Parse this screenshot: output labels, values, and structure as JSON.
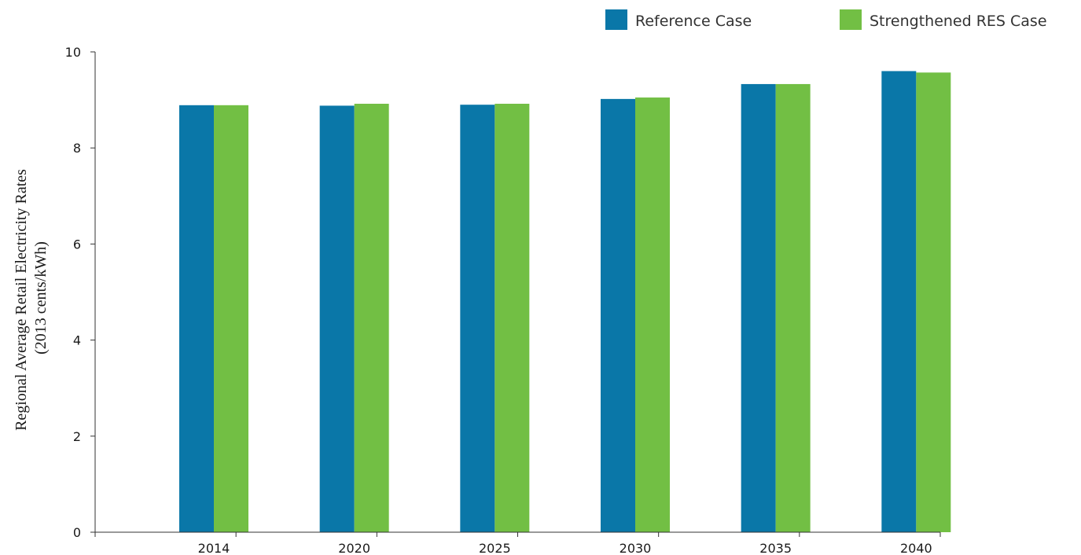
{
  "chart_data": {
    "type": "bar",
    "categories": [
      "2014",
      "2020",
      "2025",
      "2030",
      "2035",
      "2040"
    ],
    "series": [
      {
        "name": "Reference Case",
        "color": "#0a77a8",
        "values": [
          8.89,
          8.88,
          8.9,
          9.02,
          9.33,
          9.6
        ]
      },
      {
        "name": "Strengthened RES Case",
        "color": "#72bf44",
        "values": [
          8.89,
          8.92,
          8.92,
          9.05,
          9.33,
          9.57
        ]
      }
    ],
    "ylabel_lines": [
      "Regional Average Retail Electricity Rates",
      "(2013 cents/kWh)"
    ],
    "ylim": [
      0,
      10
    ],
    "yticks": [
      0,
      2,
      4,
      6,
      8,
      10
    ],
    "grid": false,
    "legend_position": "top-right"
  }
}
